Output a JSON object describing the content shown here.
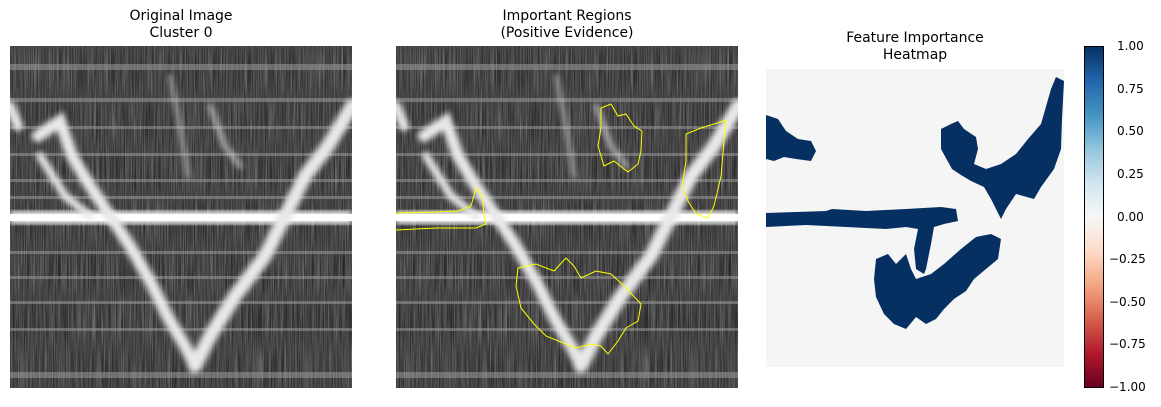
{
  "panels": [
    {
      "title": "Original Image\nCluster 0"
    },
    {
      "title": "Important Regions\n(Positive Evidence)"
    },
    {
      "title": "Feature Importance\nHeatmap"
    }
  ],
  "colorbar": {
    "colormap": "RdBu",
    "ticks": [
      "1.00",
      "0.75",
      "0.50",
      "0.25",
      "0.00",
      "−0.25",
      "−0.50",
      "−0.75",
      "−1.00"
    ]
  },
  "colors": {
    "contour": "#ffff00",
    "heatmap_positive": "#053061",
    "heatmap_neutral": "#f5f5f5"
  }
}
